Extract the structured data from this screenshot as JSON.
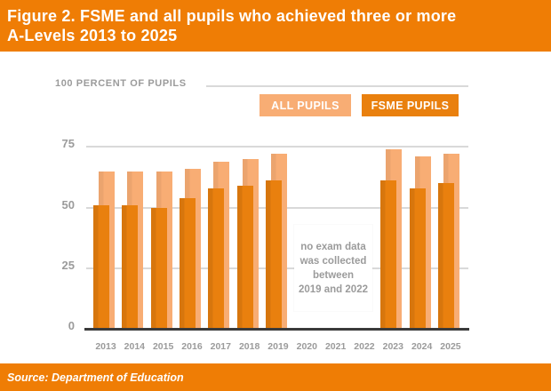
{
  "header": {
    "title_lines": [
      "Figure 2. FSME and all pupils who achieved three or more",
      "A-Levels 2013 to 2025"
    ]
  },
  "note": {
    "lines": [
      "no exam data",
      "was collected",
      "between",
      "2019 and 2022"
    ]
  },
  "footer": {
    "source": "Source: Department of Education"
  },
  "colors": {
    "banner": "#EF7D05",
    "all_pupils": "#F8AD74",
    "fsme_pupils": "#E9800E",
    "gridline": "#D9D9D9",
    "baseline": "#3A3A3A",
    "axis_text": "#9B9B9B",
    "title_text": "#FFFFFF"
  },
  "chart_data": {
    "type": "bar",
    "title": "Figure 2. FSME and all pupils who achieved three or more A-Levels 2013 to 2025",
    "categories": [
      "2013",
      "2014",
      "2015",
      "2016",
      "2017",
      "2018",
      "2019",
      "2020",
      "2021",
      "2022",
      "2023",
      "2024",
      "2025"
    ],
    "series": [
      {
        "name": "ALL PUPILS",
        "color": "#F8AD74",
        "values": [
          65,
          65,
          65,
          66,
          69,
          70,
          72,
          null,
          null,
          null,
          74,
          71,
          72
        ]
      },
      {
        "name": "FSME PUPILS",
        "color": "#E9800E",
        "values": [
          51,
          51,
          50,
          54,
          58,
          59,
          61,
          null,
          null,
          null,
          61,
          58,
          60
        ]
      }
    ],
    "xlabel": "",
    "ylabel": "100 PERCENT OF PUPILS",
    "yticks": [
      0,
      25,
      50,
      75,
      100
    ],
    "ylim": [
      0,
      100
    ],
    "grid": true,
    "legend_position": "top-right",
    "annotation": "no exam data was collected between 2019 and 2022",
    "source": "Source: Department of Education"
  }
}
